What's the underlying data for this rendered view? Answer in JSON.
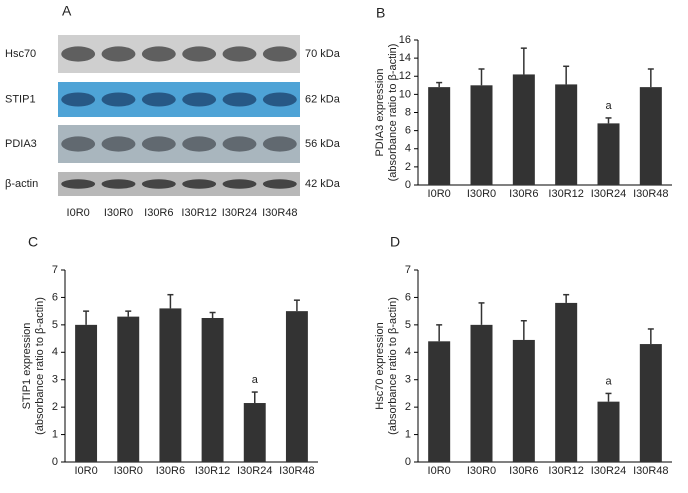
{
  "blot": {
    "panel": "A",
    "rows": [
      {
        "name": "Hsc70",
        "size": "70 kDa"
      },
      {
        "name": "STIP1",
        "size": "62 kDa"
      },
      {
        "name": "PDIA3",
        "size": "56 kDa"
      },
      {
        "name": "β-actin",
        "size": "42 kDa"
      }
    ],
    "lanes": [
      "I0R0",
      "I30R0",
      "I30R6",
      "I30R12",
      "I30R24",
      "I30R48"
    ]
  },
  "chart_data": [
    {
      "type": "bar",
      "panel": "B",
      "ylabel": [
        "PDIA3 expression",
        "(absorbance ratio to β-actin)"
      ],
      "categories": [
        "I0R0",
        "I30R0",
        "I30R6",
        "I30R12",
        "I30R24",
        "I30R48"
      ],
      "values": [
        10.8,
        11.0,
        12.2,
        11.1,
        6.8,
        10.8
      ],
      "errors": [
        0.5,
        1.8,
        2.9,
        2.0,
        0.6,
        2.0
      ],
      "color": "#333333",
      "ylim": [
        0,
        16
      ],
      "yticks": [
        0,
        2,
        4,
        6,
        8,
        10,
        12,
        14,
        16
      ],
      "annotations": [
        {
          "text": "a",
          "category": "I30R24"
        }
      ]
    },
    {
      "type": "bar",
      "panel": "C",
      "ylabel": [
        "STIP1 expression",
        "(absorbance ratio to β-actin)"
      ],
      "categories": [
        "I0R0",
        "I30R0",
        "I30R6",
        "I30R12",
        "I30R24",
        "I30R48"
      ],
      "values": [
        5.0,
        5.3,
        5.6,
        5.25,
        2.15,
        5.5
      ],
      "errors": [
        0.5,
        0.2,
        0.5,
        0.2,
        0.4,
        0.4
      ],
      "color": "#333333",
      "ylim": [
        0,
        7
      ],
      "yticks": [
        0,
        1,
        2,
        3,
        4,
        5,
        6,
        7
      ],
      "annotations": [
        {
          "text": "a",
          "category": "I30R24"
        }
      ]
    },
    {
      "type": "bar",
      "panel": "D",
      "ylabel": [
        "Hsc70 expression",
        "(absorbance ratio to β-actin)"
      ],
      "categories": [
        "I0R0",
        "I30R0",
        "I30R6",
        "I30R12",
        "I30R24",
        "I30R48"
      ],
      "values": [
        4.4,
        5.0,
        4.45,
        5.8,
        2.2,
        4.3
      ],
      "errors": [
        0.6,
        0.8,
        0.7,
        0.3,
        0.3,
        0.55
      ],
      "color": "#333333",
      "ylim": [
        0,
        7
      ],
      "yticks": [
        0,
        1,
        2,
        3,
        4,
        5,
        6,
        7
      ],
      "annotations": [
        {
          "text": "a",
          "category": "I30R24"
        }
      ]
    }
  ]
}
